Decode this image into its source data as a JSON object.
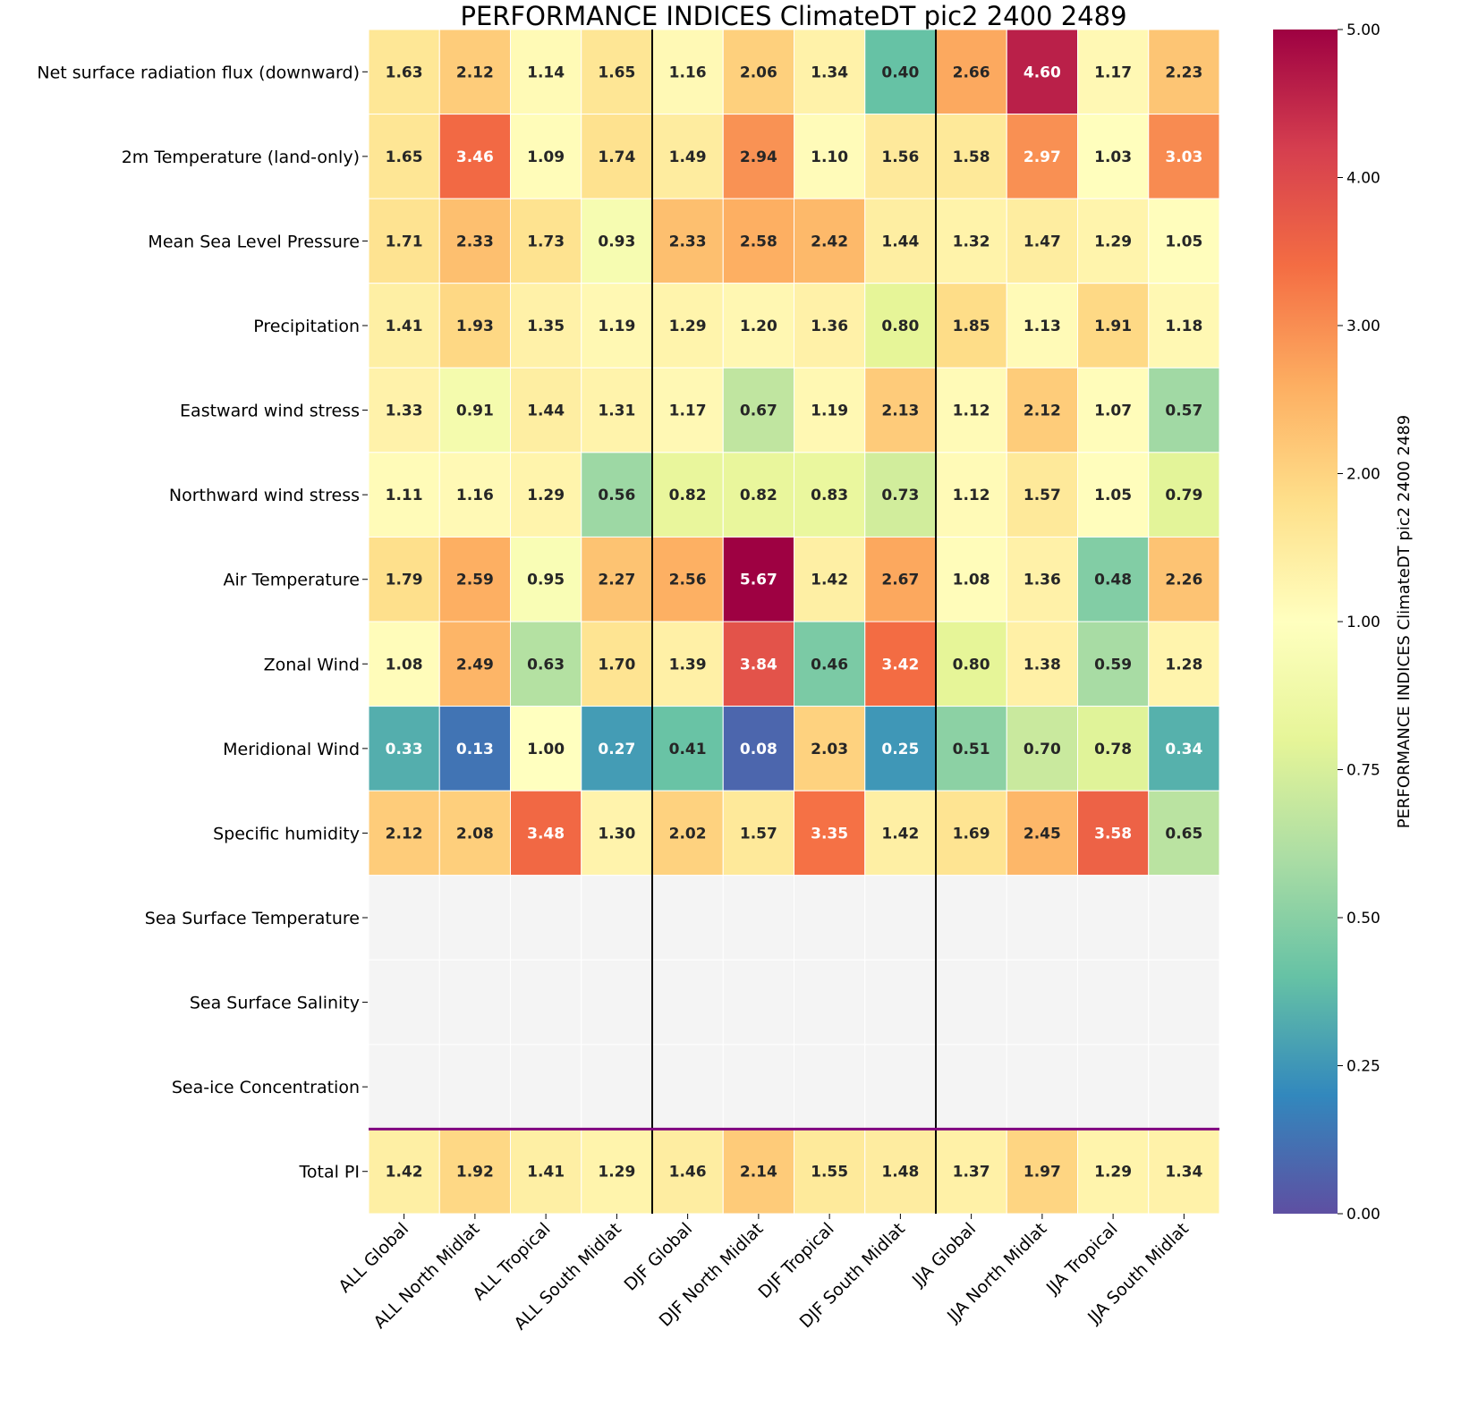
{
  "chart_data": {
    "type": "heatmap",
    "title": "PERFORMANCE INDICES ClimateDT pic2 2400 2489",
    "colorbar_label": "PERFORMANCE INDICES ClimateDT pic2 2400 2489",
    "colormap": "Spectral_r",
    "color_range": [
      0,
      5
    ],
    "color_center": 1,
    "colorbar_ticks": [
      "0.00",
      "0.25",
      "0.50",
      "0.75",
      "1.00",
      "2.00",
      "3.00",
      "4.00",
      "5.00"
    ],
    "colorbar_tick_values": [
      0,
      0.25,
      0.5,
      0.75,
      1,
      2,
      3,
      4,
      5
    ],
    "missing_color": "#f4f4f4",
    "separator_color_vertical": "#000000",
    "separator_color_total": "#800080",
    "columns": [
      "ALL Global",
      "ALL North Midlat",
      "ALL Tropical",
      "ALL South Midlat",
      "DJF Global",
      "DJF North Midlat",
      "DJF Tropical",
      "DJF South Midlat",
      "JJA Global",
      "JJA North Midlat",
      "JJA Tropical",
      "JJA South Midlat"
    ],
    "rows": [
      "Net surface radiation flux (downward)",
      "2m Temperature (land-only)",
      "Mean Sea Level Pressure",
      "Precipitation",
      "Eastward wind stress",
      "Northward wind stress",
      "Air Temperature",
      "Zonal Wind",
      "Meridional Wind",
      "Specific humidity",
      "Sea Surface Temperature",
      "Sea Surface Salinity",
      "Sea-ice Concentration",
      "Total PI"
    ],
    "values": [
      [
        1.63,
        2.12,
        1.14,
        1.65,
        1.16,
        2.06,
        1.34,
        0.4,
        2.66,
        4.6,
        1.17,
        2.23
      ],
      [
        1.65,
        3.46,
        1.09,
        1.74,
        1.49,
        2.94,
        1.1,
        1.56,
        1.58,
        2.97,
        1.03,
        3.03
      ],
      [
        1.71,
        2.33,
        1.73,
        0.93,
        2.33,
        2.58,
        2.42,
        1.44,
        1.32,
        1.47,
        1.29,
        1.05
      ],
      [
        1.41,
        1.93,
        1.35,
        1.19,
        1.29,
        1.2,
        1.36,
        0.8,
        1.85,
        1.13,
        1.91,
        1.18
      ],
      [
        1.33,
        0.91,
        1.44,
        1.31,
        1.17,
        0.67,
        1.19,
        2.13,
        1.12,
        2.12,
        1.07,
        0.57
      ],
      [
        1.11,
        1.16,
        1.29,
        0.56,
        0.82,
        0.82,
        0.83,
        0.73,
        1.12,
        1.57,
        1.05,
        0.79
      ],
      [
        1.79,
        2.59,
        0.95,
        2.27,
        2.56,
        5.67,
        1.42,
        2.67,
        1.08,
        1.36,
        0.48,
        2.26
      ],
      [
        1.08,
        2.49,
        0.63,
        1.7,
        1.39,
        3.84,
        0.46,
        3.42,
        0.8,
        1.38,
        0.59,
        1.28
      ],
      [
        0.33,
        0.13,
        1.0,
        0.27,
        0.41,
        0.08,
        2.03,
        0.25,
        0.51,
        0.7,
        0.78,
        0.34
      ],
      [
        2.12,
        2.08,
        3.48,
        1.3,
        2.02,
        1.57,
        3.35,
        1.42,
        1.69,
        2.45,
        3.58,
        0.65
      ],
      [
        null,
        null,
        null,
        null,
        null,
        null,
        null,
        null,
        null,
        null,
        null,
        null
      ],
      [
        null,
        null,
        null,
        null,
        null,
        null,
        null,
        null,
        null,
        null,
        null,
        null
      ],
      [
        null,
        null,
        null,
        null,
        null,
        null,
        null,
        null,
        null,
        null,
        null,
        null
      ],
      [
        1.42,
        1.92,
        1.41,
        1.29,
        1.46,
        2.14,
        1.55,
        1.48,
        1.37,
        1.97,
        1.29,
        1.34
      ]
    ]
  }
}
